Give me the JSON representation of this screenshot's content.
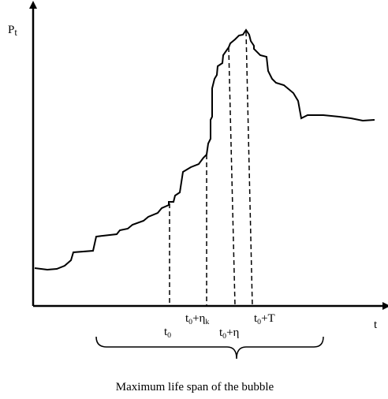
{
  "labels": {
    "y_axis": [
      {
        "text": "P",
        "sub": false
      },
      {
        "text": "t",
        "sub": true
      }
    ],
    "x_axis": [
      {
        "text": "t",
        "sub": false
      }
    ],
    "t0": [
      {
        "text": "t",
        "sub": false
      },
      {
        "text": "0",
        "sub": true
      }
    ],
    "t0_eta_k": [
      {
        "text": "t",
        "sub": false
      },
      {
        "text": "0",
        "sub": true
      },
      {
        "text": "+η",
        "sub": false
      },
      {
        "text": "k",
        "sub": true
      }
    ],
    "t0_eta": [
      {
        "text": "t",
        "sub": false
      },
      {
        "text": "0",
        "sub": true
      },
      {
        "text": "+η",
        "sub": false
      }
    ],
    "t0_T": [
      {
        "text": "t",
        "sub": false
      },
      {
        "text": "0",
        "sub": true
      },
      {
        "text": "+T",
        "sub": false
      }
    ]
  },
  "caption": "Maximum life span of the bubble"
}
